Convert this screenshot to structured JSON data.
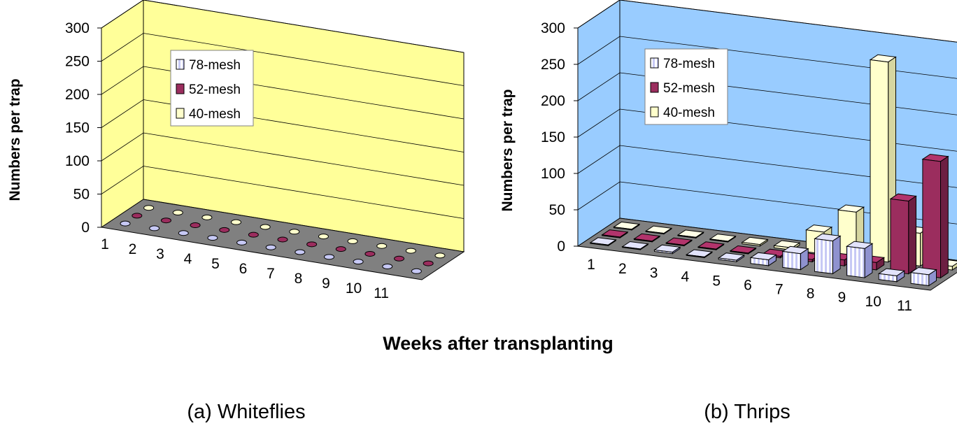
{
  "x_axis_title": "Weeks after transplanting",
  "colors": {
    "mesh78": "#c7c9f5",
    "mesh52": "#9b2d5e",
    "mesh40": "#ffffcc",
    "wall_a": "#ffff99",
    "wall_b": "#99ccff",
    "floor": "#808080"
  },
  "chart_data": [
    {
      "type": "bar",
      "caption": "(a) Whiteflies",
      "ylabel": "Numbers  per trap",
      "ylim": [
        0,
        300
      ],
      "yticks": [
        "0",
        "50",
        "100",
        "150",
        "200",
        "250",
        "300"
      ],
      "categories": [
        "1",
        "2",
        "3",
        "4",
        "5",
        "6",
        "7",
        "8",
        "9",
        "10",
        "11"
      ],
      "legend": [
        "78-mesh",
        "52-mesh",
        "40-mesh"
      ],
      "legend_position": "top-left",
      "series": [
        {
          "name": "78-mesh",
          "values": [
            0,
            0,
            0,
            0,
            0,
            0,
            0,
            0,
            0,
            0,
            0
          ]
        },
        {
          "name": "52-mesh",
          "values": [
            0,
            0,
            0,
            0,
            0,
            0,
            0,
            0,
            0,
            0,
            0
          ]
        },
        {
          "name": "40-mesh",
          "values": [
            0,
            0,
            0,
            0,
            0,
            0,
            0,
            0,
            0,
            0,
            0
          ]
        }
      ]
    },
    {
      "type": "bar",
      "caption": "(b) Thrips",
      "ylabel": "Numbers per trap",
      "ylim": [
        0,
        300
      ],
      "yticks": [
        "0",
        "50",
        "100",
        "150",
        "200",
        "250",
        "300"
      ],
      "categories": [
        "1",
        "2",
        "3",
        "4",
        "5",
        "6",
        "7",
        "8",
        "9",
        "10",
        "11"
      ],
      "legend": [
        "78-mesh",
        "52-mesh",
        "40-mesh"
      ],
      "legend_position": "top-left",
      "series": [
        {
          "name": "78-mesh",
          "values": [
            1,
            1,
            2,
            1,
            2,
            8,
            22,
            45,
            40,
            8,
            15
          ]
        },
        {
          "name": "52-mesh",
          "values": [
            1,
            1,
            1,
            1,
            1,
            2,
            3,
            8,
            10,
            100,
            160
          ]
        },
        {
          "name": "40-mesh",
          "values": [
            1,
            1,
            1,
            1,
            2,
            3,
            30,
            63,
            275,
            45,
            5
          ]
        }
      ]
    }
  ]
}
